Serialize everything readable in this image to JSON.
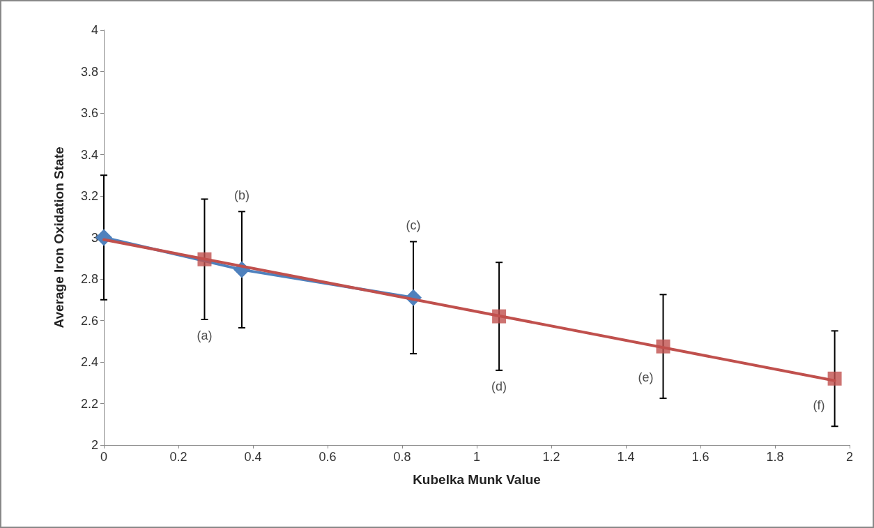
{
  "chart_data": {
    "type": "line",
    "xlabel": "Kubelka Munk Value",
    "ylabel": "Average Iron Oxidation State",
    "xlim": [
      0,
      2
    ],
    "xticks": [
      0,
      0.2,
      0.4,
      0.6,
      0.8,
      1,
      1.2,
      1.4,
      1.6,
      1.8,
      2
    ],
    "ylim": [
      2,
      4
    ],
    "yticks": [
      2,
      2.2,
      2.4,
      2.6,
      2.8,
      3,
      3.2,
      3.4,
      3.6,
      3.8,
      4
    ],
    "grid": false,
    "legend": false,
    "line_style": "solid",
    "series": [
      {
        "type": "line",
        "marker": "diamond",
        "color": "#4f81bd",
        "x": [
          0,
          0.37,
          0.83
        ],
        "values": [
          3.0,
          2.845,
          2.71
        ],
        "errors": [
          0.3,
          0.28,
          0.27
        ]
      },
      {
        "type": "line",
        "marker": "none",
        "color": "#c0504d",
        "x": [
          0,
          1.96
        ],
        "values": [
          2.99,
          2.31
        ]
      },
      {
        "type": "scatter",
        "marker": "square",
        "color": "#c0504d",
        "x": [
          0.27,
          1.06,
          1.5,
          1.96
        ],
        "values": [
          2.895,
          2.62,
          2.475,
          2.32
        ],
        "errors": [
          0.29,
          0.26,
          0.25,
          0.23
        ]
      }
    ],
    "annotations": [
      {
        "text": "(a)",
        "x": 0.27,
        "y": 2.605
      },
      {
        "text": "(b)",
        "x": 0.37,
        "y": 3.125
      },
      {
        "text": "(c)",
        "x": 0.83,
        "y": 2.98
      },
      {
        "text": "(d)",
        "x": 1.06,
        "y": 2.36
      },
      {
        "text": "(e)",
        "x": 1.5,
        "y": 2.225
      },
      {
        "text": "(f)",
        "x": 1.96,
        "y": 2.09
      }
    ]
  }
}
